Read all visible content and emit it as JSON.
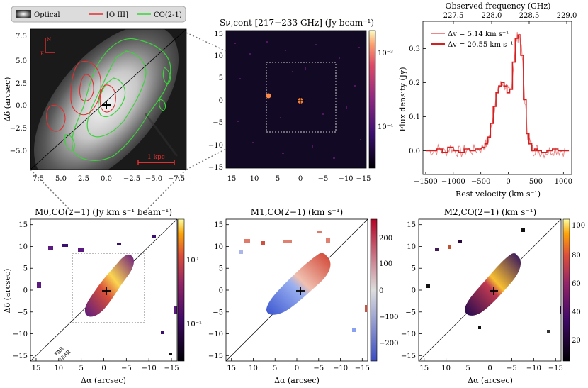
{
  "figure": {
    "legend_top": {
      "items": [
        "Optical",
        "[O III]",
        "CO(2-1)"
      ],
      "colors": [
        "#999999",
        "#e03030",
        "#3cd23c"
      ]
    },
    "panel_a": {
      "ylabel": "Δδ (arcsec)",
      "yticks": [
        "7.5",
        "5.0",
        "2.5",
        "0.0",
        "−2.5",
        "−5.0"
      ],
      "xticks": [
        "7.5",
        "5.0",
        "2.5",
        "0.0",
        "−2.5",
        "−5.0",
        "−7.5"
      ],
      "compass_n": "N",
      "compass_e": "E",
      "scalebar_label": "1 kpc"
    },
    "panel_b": {
      "title": "Sν,cont [217−233 GHz] (Jy beam⁻¹)",
      "yticks": [
        "15",
        "10",
        "5",
        "0",
        "−5",
        "−10",
        "−15"
      ],
      "xticks": [
        "15",
        "10",
        "5",
        "0",
        "−5",
        "−10",
        "−15"
      ],
      "cbar_ticks": [
        "10⁻³",
        "10⁻⁴"
      ]
    },
    "panel_c": {
      "top_label": "Observed frequency (GHz)",
      "top_ticks": [
        "227.5",
        "228.0",
        "228.5",
        "229.0"
      ],
      "ylabel": "Flux density (Jy)",
      "xlabel": "Rest velocity (km s⁻¹)",
      "legend": [
        "Δv = 5.14 km s⁻¹",
        "Δv = 20.55 km s⁻¹"
      ],
      "xticks": [
        "−1500",
        "−1000",
        "−500",
        "0",
        "500",
        "1000"
      ],
      "yticks": [
        "0.0",
        "0.1",
        "0.2",
        "0.3"
      ]
    },
    "panel_d": {
      "title": "M0,CO(2−1) (Jy km s⁻¹ beam⁻¹)",
      "ylabel": "Δδ (arcsec)",
      "xlabel": "Δα (arcsec)",
      "cbar_ticks": [
        "10⁰",
        "10⁻¹"
      ],
      "far_label": "FAR",
      "near_label": "NEAR"
    },
    "panel_e": {
      "title": "M1,CO(2−1) (km s⁻¹)",
      "xlabel": "Δα (arcsec)",
      "cbar_ticks": [
        "200",
        "100",
        "0",
        "−100",
        "−200"
      ]
    },
    "panel_f": {
      "title": "M2,CO(2−1) (km s⁻¹)",
      "xlabel": "Δα (arcsec)",
      "cbar_ticks": [
        "100",
        "80",
        "60",
        "40",
        "20"
      ]
    },
    "map_ticks": [
      "15",
      "10",
      "5",
      "0",
      "−5",
      "−10",
      "−15"
    ],
    "colors": {
      "spec_light": "#ee8888",
      "spec_dark": "#d42020"
    }
  },
  "chart_data": [
    {
      "type": "line",
      "title": "",
      "xlabel": "Rest velocity (km s⁻¹)",
      "ylabel": "Flux density (Jy)",
      "xlim": [
        -1550,
        1150
      ],
      "ylim": [
        -0.07,
        0.38
      ],
      "top_axis": {
        "label": "Observed frequency (GHz)",
        "ticks": [
          227.5,
          228.0,
          228.5,
          229.0
        ]
      },
      "series": [
        {
          "name": "Δv = 20.55 km s⁻¹",
          "x": [
            -1450,
            -1350,
            -1250,
            -1150,
            -1050,
            -950,
            -850,
            -750,
            -650,
            -550,
            -450,
            -400,
            -350,
            -300,
            -250,
            -200,
            -150,
            -100,
            -50,
            0,
            50,
            100,
            150,
            200,
            250,
            300,
            350,
            400,
            450,
            500,
            550,
            650,
            750,
            850,
            950,
            1050
          ],
          "y": [
            0.0,
            0.0,
            0.005,
            -0.005,
            0.01,
            0.0,
            -0.005,
            0.005,
            0.0,
            0.005,
            0.01,
            0.02,
            0.04,
            0.08,
            0.13,
            0.17,
            0.19,
            0.2,
            0.19,
            0.17,
            0.18,
            0.26,
            0.33,
            0.34,
            0.28,
            0.15,
            0.05,
            0.02,
            0.0,
            0.005,
            0.0,
            -0.005,
            0.0,
            0.005,
            0.0,
            0.0
          ]
        }
      ]
    }
  ]
}
